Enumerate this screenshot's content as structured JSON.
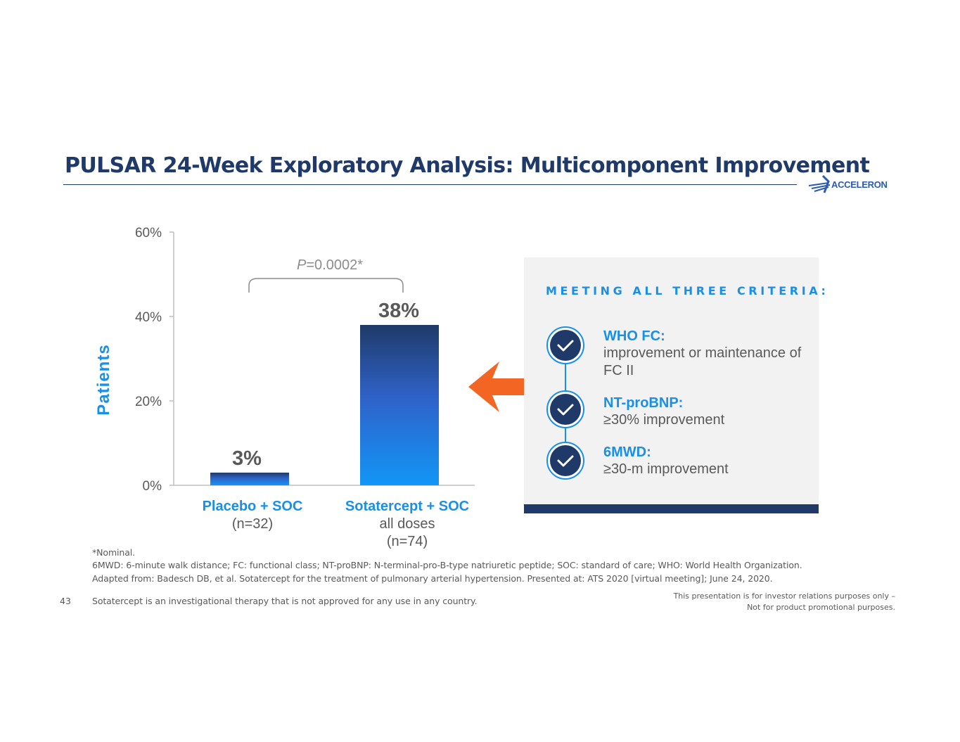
{
  "slide": {
    "title": "PULSAR 24-Week Exploratory Analysis: Multicomponent Improvement",
    "logo_text": "ACCELERON",
    "page_number": "43"
  },
  "chart_data": {
    "type": "bar",
    "categories": [
      "Placebo + SOC",
      "Sotatercept + SOC"
    ],
    "category_sublabels": [
      [
        "(n=32)"
      ],
      [
        "all doses",
        "(n=74)"
      ]
    ],
    "values": [
      3,
      38
    ],
    "data_labels": [
      "3%",
      "38%"
    ],
    "ylabel": "Patients",
    "ylim": [
      0,
      60
    ],
    "yticks": [
      0,
      20,
      40,
      60
    ],
    "ytick_labels": [
      "0%",
      "20%",
      "40%",
      "60%"
    ],
    "annotation": {
      "prefix": "P",
      "text": "=0.0002*"
    },
    "grid": false,
    "colors": {
      "bar_top": "#1f3a68",
      "bar_mid": "#2f62c8",
      "bar_bottom": "#1296f6",
      "accent": "#1a8fe8",
      "text": "#595959"
    }
  },
  "criteria": {
    "heading": "MEETING ALL THREE CRITERIA:",
    "items": [
      {
        "head": "WHO FC:",
        "text": "improvement or maintenance of FC II",
        "icon": "check-circle-icon"
      },
      {
        "head": "NT-proBNP:",
        "text": "≥30% improvement",
        "icon": "check-circle-icon"
      },
      {
        "head": "6MWD:",
        "text": "≥30-m improvement",
        "icon": "check-circle-icon"
      }
    ],
    "arrow_color": "#f26522",
    "arrow_icon": "arrow-left-icon"
  },
  "footnotes": {
    "nominal": "*Nominal.",
    "abbrev": "6MWD: 6-minute walk distance; FC: functional class; NT-proBNP: N-terminal-pro-B-type natriuretic peptide; SOC: standard of care; WHO: World Health Organization.",
    "source": "Adapted from: Badesch DB, et al. Sotatercept for the treatment of pulmonary arterial hypertension. Presented at: ATS 2020 [virtual meeting]; June 24, 2020.",
    "investigational": "Sotatercept is an investigational therapy that is not approved for any use in any country."
  },
  "disclaimer": {
    "line1": "This presentation is for investor relations purposes only –",
    "line2": "Not for product promotional purposes."
  }
}
